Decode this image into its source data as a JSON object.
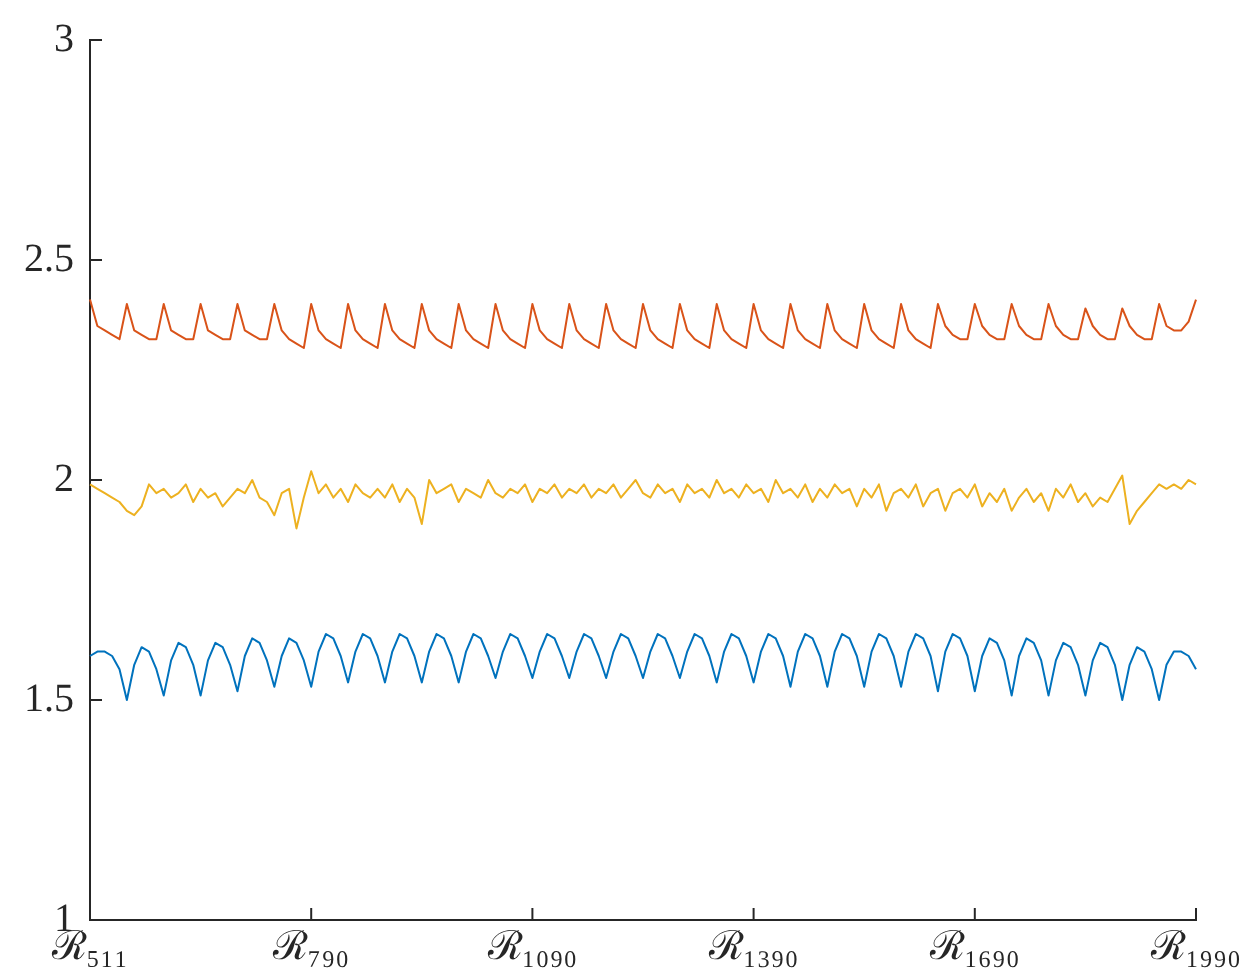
{
  "chart_data": {
    "type": "line",
    "categories": [
      "ℛ₅₁₁",
      null,
      null,
      null,
      null,
      null,
      null,
      null,
      null,
      null,
      null,
      null,
      null,
      null,
      null,
      null,
      null,
      null,
      null,
      null,
      null,
      null,
      null,
      null,
      null,
      null,
      null,
      null,
      null,
      null,
      "ℛ₇₉₀",
      null,
      null,
      null,
      null,
      null,
      null,
      null,
      null,
      null,
      null,
      null,
      null,
      null,
      null,
      null,
      null,
      null,
      null,
      null,
      null,
      null,
      null,
      null,
      null,
      null,
      null,
      null,
      null,
      null,
      "ℛ₁₀₉₀",
      null,
      null,
      null,
      null,
      null,
      null,
      null,
      null,
      null,
      null,
      null,
      null,
      null,
      null,
      null,
      null,
      null,
      null,
      null,
      null,
      null,
      null,
      null,
      null,
      null,
      null,
      null,
      null,
      null,
      "ℛ₁₃₉₀",
      null,
      null,
      null,
      null,
      null,
      null,
      null,
      null,
      null,
      null,
      null,
      null,
      null,
      null,
      null,
      null,
      null,
      null,
      null,
      null,
      null,
      null,
      null,
      null,
      null,
      null,
      null,
      null,
      null,
      "ℛ₁₆₉₀",
      null,
      null,
      null,
      null,
      null,
      null,
      null,
      null,
      null,
      null,
      null,
      null,
      null,
      null,
      null,
      null,
      null,
      null,
      null,
      null,
      null,
      null,
      null,
      null,
      null,
      null,
      null,
      null,
      null,
      "ℛ₁₉₉₀"
    ],
    "ylim": [
      1,
      3
    ],
    "yticks": [
      1,
      1.5,
      2,
      2.5,
      3
    ],
    "legend": false,
    "marker": "none",
    "line_style": "solid",
    "series": [
      {
        "color": "#d95319",
        "values": [
          2.41,
          2.35,
          2.34,
          2.33,
          2.32,
          2.4,
          2.34,
          2.33,
          2.32,
          2.32,
          2.4,
          2.34,
          2.33,
          2.32,
          2.32,
          2.4,
          2.34,
          2.33,
          2.32,
          2.32,
          2.4,
          2.34,
          2.33,
          2.32,
          2.32,
          2.4,
          2.34,
          2.32,
          2.31,
          2.3,
          2.4,
          2.34,
          2.32,
          2.31,
          2.3,
          2.4,
          2.34,
          2.32,
          2.31,
          2.3,
          2.4,
          2.34,
          2.32,
          2.31,
          2.3,
          2.4,
          2.34,
          2.32,
          2.31,
          2.3,
          2.4,
          2.34,
          2.32,
          2.31,
          2.3,
          2.4,
          2.34,
          2.32,
          2.31,
          2.3,
          2.4,
          2.34,
          2.32,
          2.31,
          2.3,
          2.4,
          2.34,
          2.32,
          2.31,
          2.3,
          2.4,
          2.34,
          2.32,
          2.31,
          2.3,
          2.4,
          2.34,
          2.32,
          2.31,
          2.3,
          2.4,
          2.34,
          2.32,
          2.31,
          2.3,
          2.4,
          2.34,
          2.32,
          2.31,
          2.3,
          2.4,
          2.34,
          2.32,
          2.31,
          2.3,
          2.4,
          2.34,
          2.32,
          2.31,
          2.3,
          2.4,
          2.34,
          2.32,
          2.31,
          2.3,
          2.4,
          2.34,
          2.32,
          2.31,
          2.3,
          2.4,
          2.34,
          2.32,
          2.31,
          2.3,
          2.4,
          2.35,
          2.33,
          2.32,
          2.32,
          2.4,
          2.35,
          2.33,
          2.32,
          2.32,
          2.4,
          2.35,
          2.33,
          2.32,
          2.32,
          2.4,
          2.35,
          2.33,
          2.32,
          2.32,
          2.39,
          2.35,
          2.33,
          2.32,
          2.32,
          2.39,
          2.35,
          2.33,
          2.32,
          2.32,
          2.4,
          2.35,
          2.34,
          2.34,
          2.36,
          2.41
        ]
      },
      {
        "color": "#edb120",
        "values": [
          1.99,
          1.98,
          1.97,
          1.96,
          1.95,
          1.93,
          1.92,
          1.94,
          1.99,
          1.97,
          1.98,
          1.96,
          1.97,
          1.99,
          1.95,
          1.98,
          1.96,
          1.97,
          1.94,
          1.96,
          1.98,
          1.97,
          2.0,
          1.96,
          1.95,
          1.92,
          1.97,
          1.98,
          1.89,
          1.96,
          2.02,
          1.97,
          1.99,
          1.96,
          1.98,
          1.95,
          1.99,
          1.97,
          1.96,
          1.98,
          1.96,
          1.99,
          1.95,
          1.98,
          1.96,
          1.9,
          2.0,
          1.97,
          1.98,
          1.99,
          1.95,
          1.98,
          1.97,
          1.96,
          2.0,
          1.97,
          1.96,
          1.98,
          1.97,
          1.99,
          1.95,
          1.98,
          1.97,
          1.99,
          1.96,
          1.98,
          1.97,
          1.99,
          1.96,
          1.98,
          1.97,
          1.99,
          1.96,
          1.98,
          2.0,
          1.97,
          1.96,
          1.99,
          1.97,
          1.98,
          1.95,
          1.99,
          1.97,
          1.98,
          1.96,
          2.0,
          1.97,
          1.98,
          1.96,
          1.99,
          1.97,
          1.98,
          1.95,
          2.0,
          1.97,
          1.98,
          1.96,
          1.99,
          1.95,
          1.98,
          1.96,
          1.99,
          1.97,
          1.98,
          1.94,
          1.98,
          1.96,
          1.99,
          1.93,
          1.97,
          1.98,
          1.96,
          1.99,
          1.94,
          1.97,
          1.98,
          1.93,
          1.97,
          1.98,
          1.96,
          1.99,
          1.94,
          1.97,
          1.95,
          1.98,
          1.93,
          1.96,
          1.98,
          1.95,
          1.97,
          1.93,
          1.98,
          1.96,
          1.99,
          1.95,
          1.97,
          1.94,
          1.96,
          1.95,
          1.98,
          2.01,
          1.9,
          1.93,
          1.95,
          1.97,
          1.99,
          1.98,
          1.99,
          1.98,
          2.0,
          1.99
        ]
      },
      {
        "color": "#0072bd",
        "values": [
          1.6,
          1.61,
          1.61,
          1.6,
          1.57,
          1.5,
          1.58,
          1.62,
          1.61,
          1.57,
          1.51,
          1.59,
          1.63,
          1.62,
          1.58,
          1.51,
          1.59,
          1.63,
          1.62,
          1.58,
          1.52,
          1.6,
          1.64,
          1.63,
          1.59,
          1.53,
          1.6,
          1.64,
          1.63,
          1.59,
          1.53,
          1.61,
          1.65,
          1.64,
          1.6,
          1.54,
          1.61,
          1.65,
          1.64,
          1.6,
          1.54,
          1.61,
          1.65,
          1.64,
          1.6,
          1.54,
          1.61,
          1.65,
          1.64,
          1.6,
          1.54,
          1.61,
          1.65,
          1.64,
          1.6,
          1.55,
          1.61,
          1.65,
          1.64,
          1.6,
          1.55,
          1.61,
          1.65,
          1.64,
          1.6,
          1.55,
          1.61,
          1.65,
          1.64,
          1.6,
          1.55,
          1.61,
          1.65,
          1.64,
          1.6,
          1.55,
          1.61,
          1.65,
          1.64,
          1.6,
          1.55,
          1.61,
          1.65,
          1.64,
          1.6,
          1.54,
          1.61,
          1.65,
          1.64,
          1.6,
          1.54,
          1.61,
          1.65,
          1.64,
          1.6,
          1.53,
          1.61,
          1.65,
          1.64,
          1.6,
          1.53,
          1.61,
          1.65,
          1.64,
          1.6,
          1.53,
          1.61,
          1.65,
          1.64,
          1.6,
          1.53,
          1.61,
          1.65,
          1.64,
          1.6,
          1.52,
          1.61,
          1.65,
          1.64,
          1.6,
          1.52,
          1.6,
          1.64,
          1.63,
          1.59,
          1.51,
          1.6,
          1.64,
          1.63,
          1.59,
          1.51,
          1.59,
          1.63,
          1.62,
          1.58,
          1.51,
          1.59,
          1.63,
          1.62,
          1.58,
          1.5,
          1.58,
          1.62,
          1.61,
          1.57,
          1.5,
          1.58,
          1.61,
          1.61,
          1.6,
          1.57
        ]
      }
    ]
  }
}
